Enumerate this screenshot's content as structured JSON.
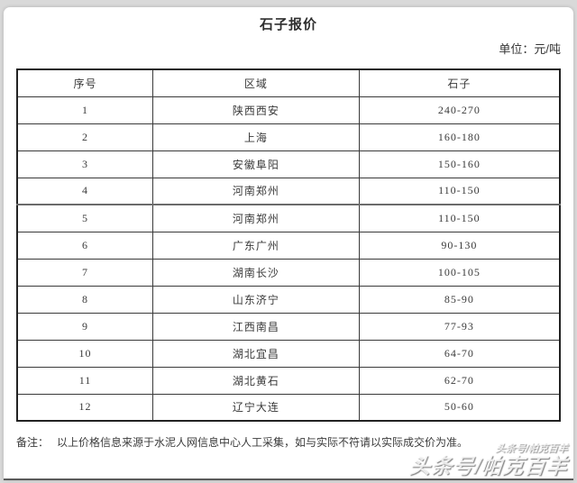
{
  "page": {
    "title": "石子报价",
    "unit_label": "单位：元/吨",
    "note_label": "备注：",
    "note_text": "以上价格信息来源于水泥人网信息中心人工采集，如与实际不符请以实际成交价为准。",
    "watermark": {
      "small": "头条号/帕克百羊",
      "main": "头条号/帕克百羊"
    },
    "colors": {
      "page_background": "#ffffff",
      "outer_background": "#d9d9d9",
      "text": "#3a3a3a",
      "table_border": "#222222",
      "bottom_edge": "#5a5a5a"
    }
  },
  "table": {
    "headers": [
      "序号",
      "区域",
      "石子"
    ],
    "rows": [
      [
        "1",
        "陕西西安",
        "240-270"
      ],
      [
        "2",
        "上海",
        "160-180"
      ],
      [
        "3",
        "安徽阜阳",
        "150-160"
      ],
      [
        "4",
        "河南郑州",
        "110-150"
      ],
      [
        "5",
        "河南郑州",
        "110-150"
      ],
      [
        "6",
        "广东广州",
        "90-130"
      ],
      [
        "7",
        "湖南长沙",
        "100-105"
      ],
      [
        "8",
        "山东济宁",
        "85-90"
      ],
      [
        "9",
        "江西南昌",
        "77-93"
      ],
      [
        "10",
        "湖北宜昌",
        "64-70"
      ],
      [
        "11",
        "湖北黄石",
        "62-70"
      ],
      [
        "12",
        "辽宁大连",
        "50-60"
      ]
    ]
  }
}
